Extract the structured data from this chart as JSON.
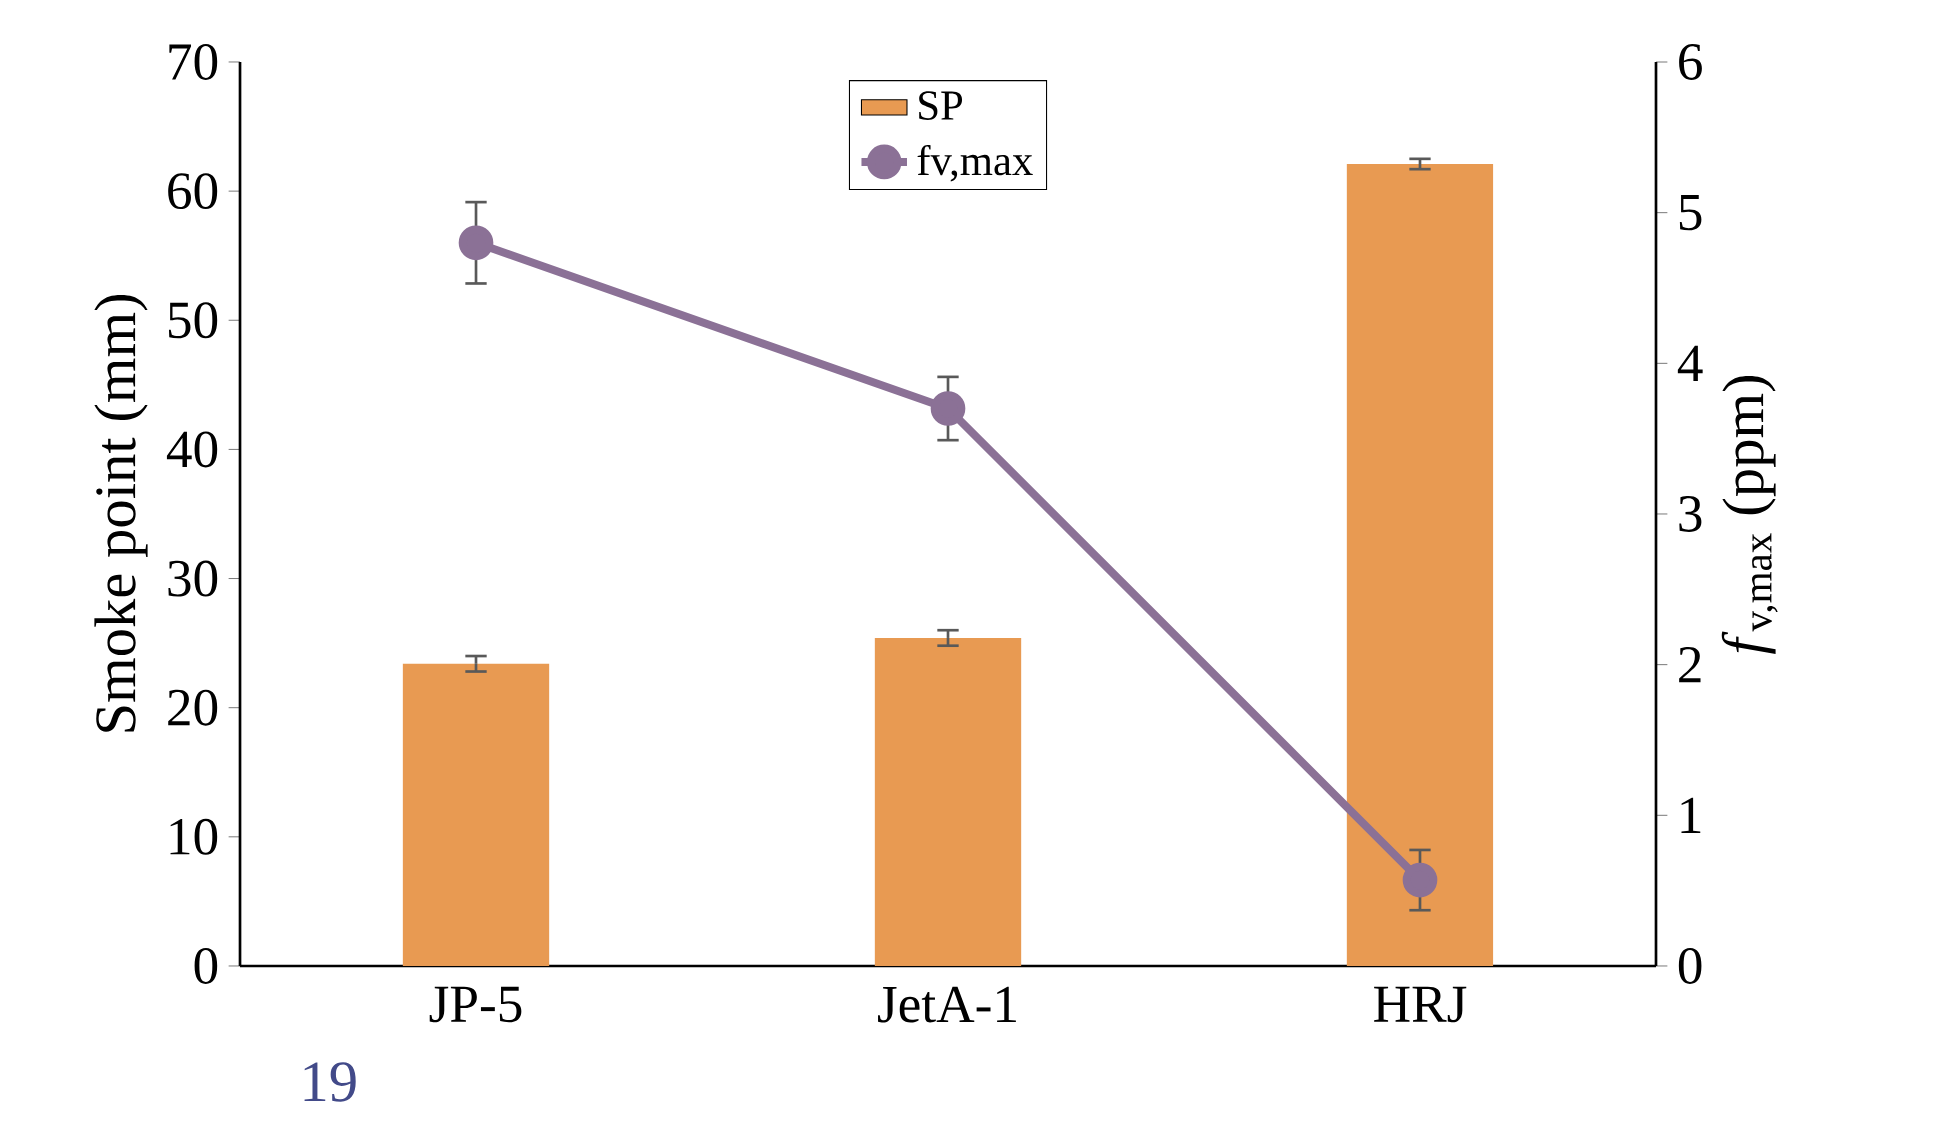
{
  "chart_data": {
    "type": "bar",
    "categories": [
      "JP-5",
      "JetA-1",
      "HRJ"
    ],
    "ylabel": "Smoke point (mm)",
    "y2label": "*f*$_{v,max}$ (ppm)",
    "ylim": [
      0,
      70
    ],
    "yticks": [
      0,
      10,
      20,
      30,
      40,
      50,
      60,
      70
    ],
    "y2lim": [
      0,
      6
    ],
    "y2ticks": [
      0,
      1,
      2,
      3,
      4,
      5,
      6
    ],
    "legend": "top",
    "grid": false,
    "annotations": [
      "19"
    ],
    "series": [
      {
        "name": "SP",
        "color": "#e89a52",
        "values": [
          23.4,
          25.4,
          62.1
        ],
        "errors": [
          0.6,
          0.6,
          0.4
        ]
      },
      {
        "name": "fv,max",
        "type": "line",
        "axis": "y2",
        "color": "#8b7196",
        "marker": "circle",
        "line_style": "solid",
        "values": [
          4.8,
          3.7,
          0.57
        ],
        "errors": [
          0.27,
          0.21,
          0.2
        ]
      }
    ]
  }
}
